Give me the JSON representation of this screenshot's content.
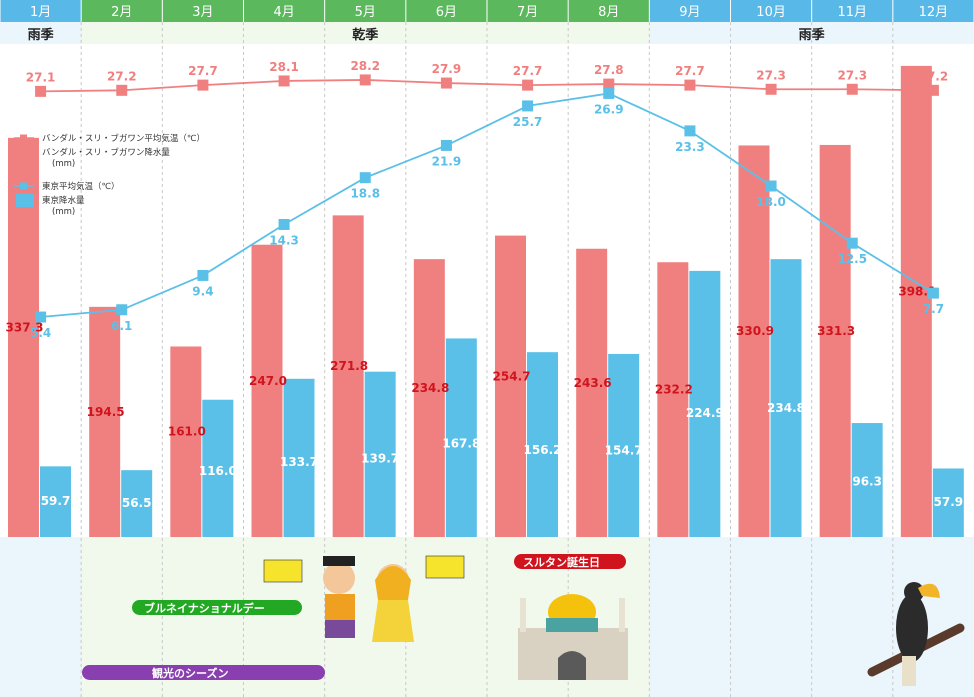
{
  "chart_data": {
    "type": "bar",
    "categories": [
      "1月",
      "2月",
      "3月",
      "4月",
      "5月",
      "6月",
      "7月",
      "8月",
      "9月",
      "10月",
      "11月",
      "12月"
    ],
    "seasons": [
      {
        "label": "雨季",
        "start": 0,
        "end": 0
      },
      {
        "label": "乾季",
        "start": 1,
        "end": 7
      },
      {
        "label": "雨季",
        "start": 8,
        "end": 11
      }
    ],
    "series": [
      {
        "name": "バンダル・スリ・ブガワン降水量 (mm)",
        "kind": "bar",
        "color": "#f08080",
        "values": [
          337.3,
          194.5,
          161.0,
          247.0,
          271.8,
          234.8,
          254.7,
          243.6,
          232.2,
          330.9,
          331.3,
          398.1
        ]
      },
      {
        "name": "東京降水量 (mm)",
        "kind": "bar",
        "color": "#5bc0e8",
        "values": [
          59.7,
          56.5,
          116.0,
          133.7,
          139.7,
          167.8,
          156.2,
          154.7,
          224.9,
          234.8,
          96.3,
          57.9
        ]
      },
      {
        "name": "バンダル・スリ・ブガワン平均気温（℃）",
        "kind": "line",
        "color": "#f08080",
        "values": [
          27.1,
          27.2,
          27.7,
          28.1,
          28.2,
          27.9,
          27.7,
          27.8,
          27.7,
          27.3,
          27.3,
          27.2
        ]
      },
      {
        "name": "東京平均気温（℃）",
        "kind": "line",
        "color": "#5bc0e8",
        "values": [
          5.4,
          6.1,
          9.4,
          14.3,
          18.8,
          21.9,
          25.7,
          26.9,
          23.3,
          18.0,
          12.5,
          7.7
        ]
      }
    ],
    "legend": [
      {
        "label_lines": [
          "バンダル・スリ・ブガワン平均気温（℃）"
        ],
        "kind": "line",
        "color": "#f08080"
      },
      {
        "label_lines": [
          "バンダル・スリ・ブガワン降水量",
          "(mm)"
        ],
        "kind": "bar",
        "color": "#f08080"
      },
      {
        "label_lines": [
          "東京平均気温（℃）"
        ],
        "kind": "line",
        "color": "#5bc0e8"
      },
      {
        "label_lines": [
          "東京降水量",
          "(mm)"
        ],
        "kind": "bar",
        "color": "#5bc0e8"
      }
    ],
    "legend_placement": "top-left",
    "events": [
      {
        "label": "ブルネイナショナルデー",
        "color": "#22a822"
      },
      {
        "label": "スルタン誕生日",
        "color": "#d0141e"
      },
      {
        "label": "観光のシーズン",
        "color": "#8a3fb0"
      }
    ],
    "colors": {
      "rain_header": "#58b9e8",
      "dry_header": "#5cb85c",
      "rain_band": "#eaf6fc",
      "dry_band": "#f1f8ec"
    }
  }
}
